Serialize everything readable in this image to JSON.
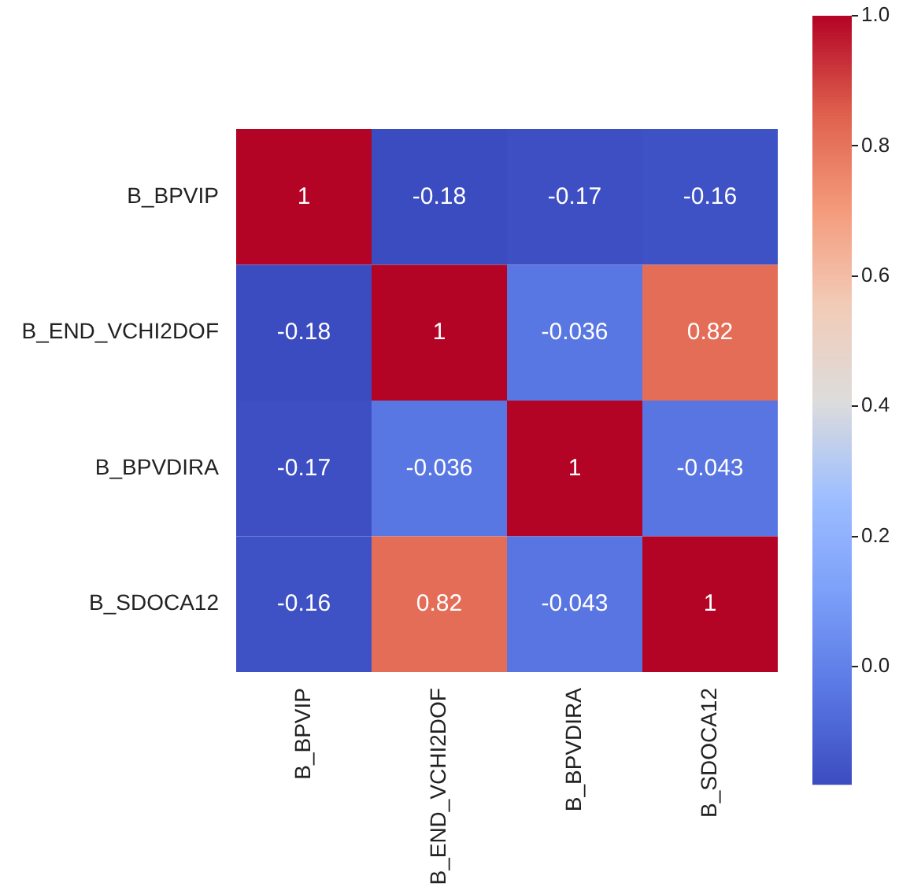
{
  "chart_data": {
    "type": "heatmap",
    "categories": [
      "B_BPVIP",
      "B_END_VCHI2DOF",
      "B_BPVDIRA",
      "B_SDOCA12"
    ],
    "y_categories": [
      "B_BPVIP",
      "B_END_VCHI2DOF",
      "B_BPVDIRA",
      "B_SDOCA12"
    ],
    "cells": [
      [
        1,
        -0.18,
        -0.17,
        -0.16
      ],
      [
        -0.18,
        1,
        -0.036,
        0.82
      ],
      [
        -0.17,
        -0.036,
        1,
        -0.043
      ],
      [
        -0.16,
        0.82,
        -0.043,
        1
      ]
    ],
    "data_labels": true,
    "clim": [
      -0.18,
      1
    ],
    "cticks": [
      {
        "value": 0,
        "label": "0.0"
      },
      0.2,
      0.4,
      0.6,
      0.8,
      {
        "value": 1,
        "label": "1.0"
      }
    ]
  }
}
